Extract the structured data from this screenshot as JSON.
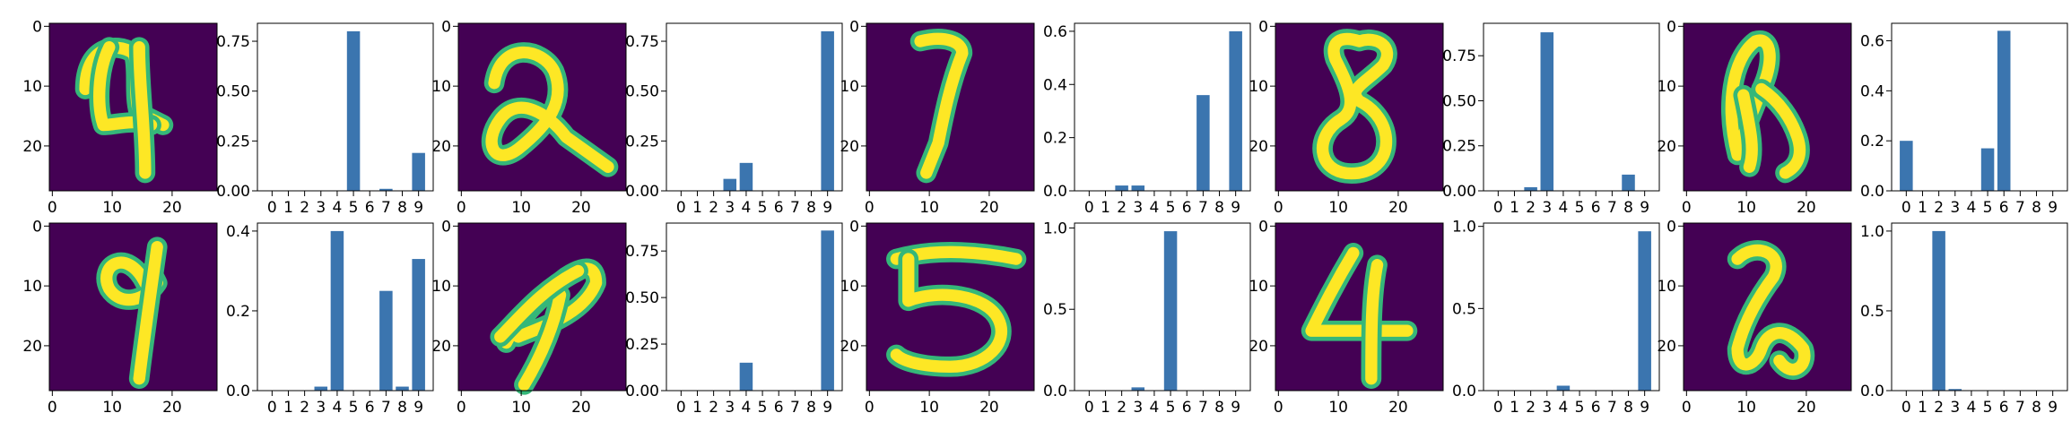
{
  "figure": {
    "rows": 2,
    "cols": 5,
    "image_axis": {
      "ticks": [
        0,
        10,
        20
      ],
      "extent": [
        -0.5,
        27.5
      ]
    },
    "colors": {
      "bar": "#3b75af",
      "image_bg": "#440154",
      "image_fg": "#fde725",
      "axis": "#000000"
    },
    "colormap": "viridis"
  },
  "chart_data": [
    {
      "type": "bar",
      "panel": "r1c1",
      "image_icon": "mnist-digit-image",
      "categories": [
        "0",
        "1",
        "2",
        "3",
        "4",
        "5",
        "6",
        "7",
        "8",
        "9"
      ],
      "values": [
        0,
        0,
        0,
        0,
        0,
        0.8,
        0,
        0.01,
        0,
        0.19
      ],
      "ylim": [
        0,
        0.84
      ],
      "yticks": [
        "0.00",
        "0.25",
        "0.50",
        "0.75"
      ]
    },
    {
      "type": "bar",
      "panel": "r1c2",
      "image_icon": "mnist-digit-image",
      "categories": [
        "0",
        "1",
        "2",
        "3",
        "4",
        "5",
        "6",
        "7",
        "8",
        "9"
      ],
      "values": [
        0,
        0,
        0,
        0.06,
        0.14,
        0,
        0,
        0,
        0,
        0.8
      ],
      "ylim": [
        0,
        0.84
      ],
      "yticks": [
        "0.00",
        "0.25",
        "0.50",
        "0.75"
      ]
    },
    {
      "type": "bar",
      "panel": "r1c3",
      "image_icon": "mnist-digit-image",
      "categories": [
        "0",
        "1",
        "2",
        "3",
        "4",
        "5",
        "6",
        "7",
        "8",
        "9"
      ],
      "values": [
        0,
        0,
        0.02,
        0.02,
        0,
        0,
        0,
        0.36,
        0,
        0.6
      ],
      "ylim": [
        0,
        0.63
      ],
      "yticks": [
        "0.0",
        "0.2",
        "0.4",
        "0.6"
      ]
    },
    {
      "type": "bar",
      "panel": "r1c4",
      "image_icon": "mnist-digit-image",
      "categories": [
        "0",
        "1",
        "2",
        "3",
        "4",
        "5",
        "6",
        "7",
        "8",
        "9"
      ],
      "values": [
        0,
        0,
        0.02,
        0.88,
        0,
        0,
        0,
        0,
        0.09,
        0
      ],
      "ylim": [
        0,
        0.93
      ],
      "yticks": [
        "0.00",
        "0.25",
        "0.50",
        "0.75"
      ]
    },
    {
      "type": "bar",
      "panel": "r1c5",
      "image_icon": "mnist-digit-image",
      "categories": [
        "0",
        "1",
        "2",
        "3",
        "4",
        "5",
        "6",
        "7",
        "8",
        "9"
      ],
      "values": [
        0.2,
        0,
        0,
        0,
        0,
        0.17,
        0.64,
        0,
        0,
        0
      ],
      "ylim": [
        0,
        0.67
      ],
      "yticks": [
        "0.0",
        "0.2",
        "0.4",
        "0.6"
      ]
    },
    {
      "type": "bar",
      "panel": "r2c1",
      "image_icon": "mnist-digit-image",
      "categories": [
        "0",
        "1",
        "2",
        "3",
        "4",
        "5",
        "6",
        "7",
        "8",
        "9"
      ],
      "values": [
        0,
        0,
        0,
        0.01,
        0.4,
        0,
        0,
        0.25,
        0.01,
        0.33
      ],
      "ylim": [
        0,
        0.42
      ],
      "yticks": [
        "0.0",
        "0.2",
        "0.4"
      ]
    },
    {
      "type": "bar",
      "panel": "r2c2",
      "image_icon": "mnist-digit-image",
      "categories": [
        "0",
        "1",
        "2",
        "3",
        "4",
        "5",
        "6",
        "7",
        "8",
        "9"
      ],
      "values": [
        0,
        0,
        0,
        0,
        0.15,
        0,
        0,
        0,
        0,
        0.86
      ],
      "ylim": [
        0,
        0.9
      ],
      "yticks": [
        "0.00",
        "0.25",
        "0.50",
        "0.75"
      ]
    },
    {
      "type": "bar",
      "panel": "r2c3",
      "image_icon": "mnist-digit-image",
      "categories": [
        "0",
        "1",
        "2",
        "3",
        "4",
        "5",
        "6",
        "7",
        "8",
        "9"
      ],
      "values": [
        0,
        0,
        0,
        0.02,
        0,
        0.98,
        0,
        0,
        0,
        0
      ],
      "ylim": [
        0,
        1.03
      ],
      "yticks": [
        "0.0",
        "0.5",
        "1.0"
      ]
    },
    {
      "type": "bar",
      "panel": "r2c4",
      "image_icon": "mnist-digit-image",
      "categories": [
        "0",
        "1",
        "2",
        "3",
        "4",
        "5",
        "6",
        "7",
        "8",
        "9"
      ],
      "values": [
        0,
        0,
        0,
        0,
        0.03,
        0,
        0,
        0,
        0,
        0.97
      ],
      "ylim": [
        0,
        1.02
      ],
      "yticks": [
        "0.0",
        "0.5",
        "1.0"
      ]
    },
    {
      "type": "bar",
      "panel": "r2c5",
      "image_icon": "mnist-digit-image",
      "categories": [
        "0",
        "1",
        "2",
        "3",
        "4",
        "5",
        "6",
        "7",
        "8",
        "9"
      ],
      "values": [
        0,
        0,
        1.0,
        0.01,
        0,
        0,
        0,
        0,
        0,
        0
      ],
      "ylim": [
        0,
        1.05
      ],
      "yticks": [
        "0.0",
        "0.5",
        "1.0"
      ]
    }
  ]
}
